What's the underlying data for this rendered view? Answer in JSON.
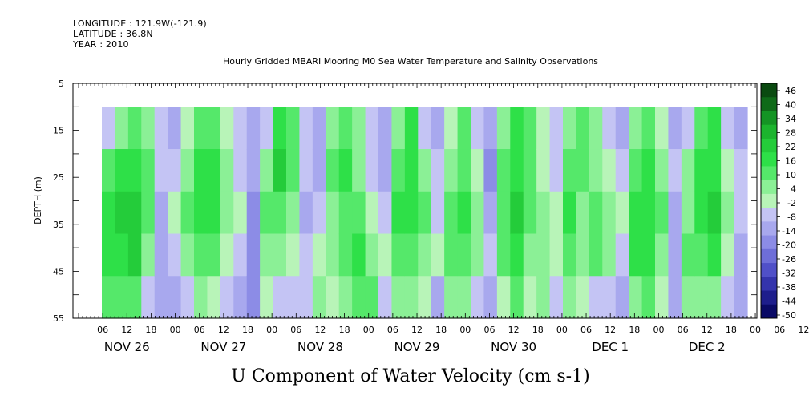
{
  "header": {
    "longitude": "LONGITUDE : 121.9W(-121.9)",
    "latitude": "LATITUDE : 36.8N",
    "year": "YEAR : 2010"
  },
  "chart_data": {
    "type": "heatmap",
    "title": "Hourly Gridded MBARI Mooring M0 Sea Water Temperature and Salinity Observations",
    "xlabel": "U Component of Water Velocity (cm s-1)",
    "ylabel": "DEPTH (m)",
    "ylim": [
      55,
      5
    ],
    "y_ticks": [
      5,
      15,
      25,
      35,
      45,
      55
    ],
    "hour_ticks": [
      "06",
      "12",
      "18",
      "00",
      "06",
      "12",
      "18",
      "00",
      "06",
      "12",
      "18",
      "00",
      "06",
      "12",
      "18",
      "00",
      "06",
      "12",
      "18",
      "00",
      "06",
      "12",
      "18",
      "00",
      "06",
      "12",
      "18",
      "00",
      "06",
      "12",
      "18",
      "00"
    ],
    "day_labels": [
      "NOV 26",
      "NOV 27",
      "NOV 28",
      "NOV 29",
      "NOV 30",
      "DEC  1",
      "DEC  2"
    ],
    "data_depth_range": [
      10,
      55
    ],
    "colorbar": {
      "labels": [
        "46",
        "40",
        "34",
        "28",
        "22",
        "16",
        "10",
        "4",
        "-2",
        "-8",
        "-14",
        "-20",
        "-26",
        "-32",
        "-38",
        "-44",
        "-50"
      ],
      "range": [
        -50,
        50
      ],
      "colors_top_to_bottom": [
        "#0a4a10",
        "#0f6a18",
        "#149424",
        "#1cb42e",
        "#24cc3a",
        "#2ee048",
        "#55e86a",
        "#8bf096",
        "#b8f4b8",
        "#c4c4f4",
        "#a8a8ee",
        "#8c8ce6",
        "#6e6ed8",
        "#5050c8",
        "#3434ac",
        "#1e1e8c",
        "#0a0a66"
      ]
    },
    "column_profiles_cm_s": [
      [
        -4,
        14,
        18,
        16,
        12
      ],
      [
        4,
        16,
        22,
        20,
        14
      ],
      [
        12,
        18,
        24,
        22,
        10
      ],
      [
        8,
        14,
        12,
        6,
        -4
      ],
      [
        -6,
        -8,
        -10,
        -12,
        -14
      ],
      [
        -10,
        -6,
        -2,
        -6,
        -12
      ],
      [
        2,
        8,
        10,
        6,
        -4
      ],
      [
        14,
        18,
        16,
        12,
        4
      ],
      [
        10,
        16,
        20,
        14,
        2
      ],
      [
        -2,
        4,
        8,
        2,
        -8
      ],
      [
        -8,
        -4,
        0,
        -6,
        -14
      ],
      [
        -12,
        -14,
        -16,
        -18,
        -20
      ],
      [
        -6,
        4,
        10,
        8,
        -2
      ],
      [
        16,
        22,
        14,
        6,
        -6
      ],
      [
        12,
        10,
        4,
        -2,
        -8
      ],
      [
        -4,
        -8,
        -10,
        -6,
        -4
      ],
      [
        -10,
        -12,
        -6,
        2,
        6
      ],
      [
        6,
        10,
        8,
        4,
        -2
      ],
      [
        14,
        18,
        14,
        10,
        6
      ],
      [
        4,
        8,
        12,
        16,
        10
      ],
      [
        -6,
        -4,
        2,
        8,
        12
      ],
      [
        -12,
        -10,
        -6,
        -2,
        -8
      ],
      [
        8,
        12,
        16,
        10,
        4
      ],
      [
        16,
        20,
        18,
        14,
        8
      ],
      [
        -4,
        6,
        10,
        8,
        2
      ],
      [
        -12,
        -8,
        -4,
        -2,
        -10
      ],
      [
        2,
        8,
        14,
        12,
        4
      ],
      [
        10,
        14,
        16,
        10,
        6
      ],
      [
        -6,
        -2,
        6,
        4,
        -4
      ],
      [
        -14,
        -16,
        -10,
        -6,
        -12
      ],
      [
        4,
        10,
        14,
        12,
        2
      ],
      [
        16,
        20,
        22,
        18,
        10
      ],
      [
        12,
        14,
        10,
        6,
        -2
      ],
      [
        -2,
        2,
        6,
        8,
        4
      ],
      [
        -8,
        -6,
        -2,
        2,
        -6
      ],
      [
        6,
        12,
        16,
        14,
        8
      ],
      [
        14,
        10,
        8,
        6,
        2
      ],
      [
        4,
        8,
        12,
        10,
        -4
      ],
      [
        -4,
        2,
        8,
        6,
        -8
      ],
      [
        -10,
        -6,
        -2,
        -4,
        -12
      ],
      [
        8,
        14,
        18,
        16,
        6
      ],
      [
        14,
        18,
        20,
        18,
        10
      ],
      [
        2,
        6,
        10,
        8,
        -2
      ],
      [
        -10,
        -8,
        -12,
        -14,
        -10
      ],
      [
        -6,
        4,
        8,
        10,
        6
      ],
      [
        12,
        16,
        18,
        14,
        8
      ],
      [
        16,
        20,
        22,
        16,
        4
      ],
      [
        -4,
        -2,
        4,
        2,
        -8
      ],
      [
        -10,
        -6,
        -8,
        -12,
        -14
      ]
    ]
  }
}
